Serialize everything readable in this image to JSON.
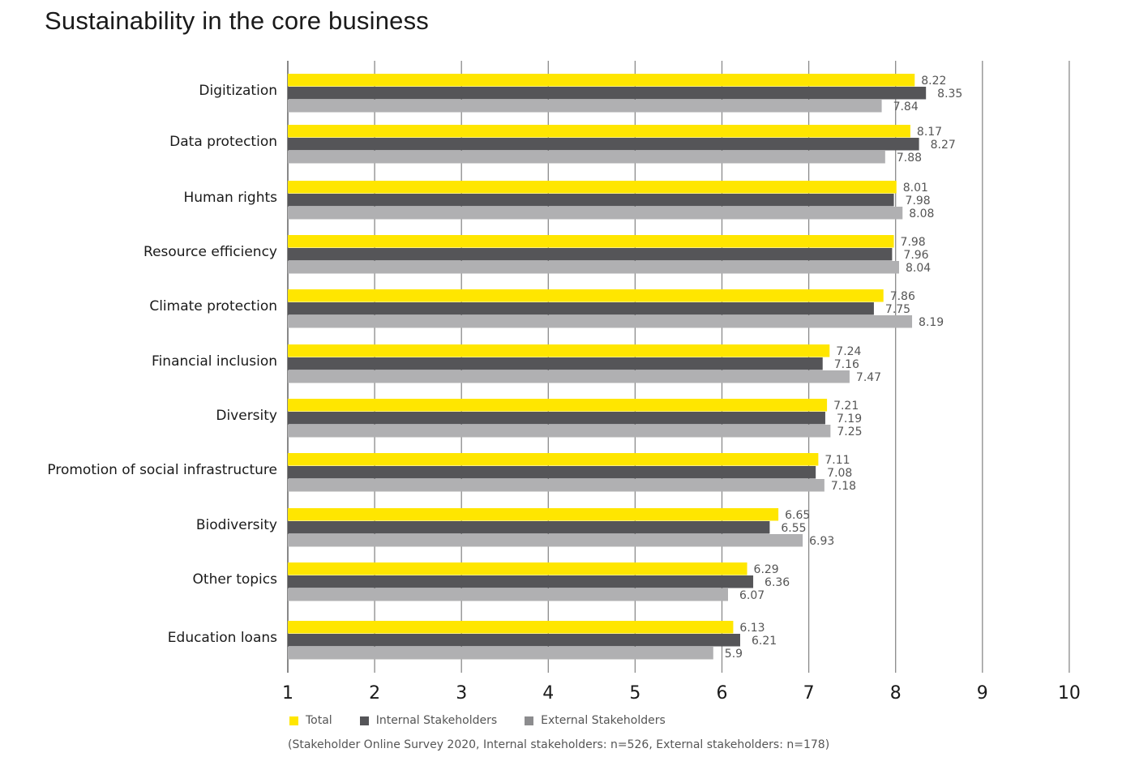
{
  "chart_data": {
    "type": "bar",
    "orientation": "horizontal",
    "title": "Sustainability in the core business",
    "xlabel": "",
    "ylabel": "",
    "xlim": [
      1,
      10
    ],
    "xticks": [
      "1",
      "2",
      "3",
      "4",
      "5",
      "6",
      "7",
      "8",
      "9",
      "10"
    ],
    "grid": true,
    "legend_position": "bottom-left",
    "categories": [
      "Digitization",
      "Data protection",
      "Human rights",
      "Resource efficiency",
      "Climate protection",
      "Financial inclusion",
      "Diversity",
      "Promotion of social infrastructure",
      "Biodiversity",
      "Other topics",
      "Education loans"
    ],
    "series": [
      {
        "name": "Total",
        "color": "#FFE600",
        "values": [
          8.22,
          8.17,
          8.01,
          7.98,
          7.86,
          7.24,
          7.21,
          7.11,
          6.65,
          6.29,
          6.13
        ],
        "labels": [
          "8.22",
          "8.17",
          "8.01",
          "7.98",
          "7.86",
          "7.24",
          "7.21",
          "7.11",
          "6.65",
          "6.29",
          "6.13"
        ]
      },
      {
        "name": "Internal Stakeholders",
        "color": "#555558",
        "values": [
          8.35,
          8.27,
          7.98,
          7.96,
          7.75,
          7.16,
          7.19,
          7.08,
          6.55,
          6.36,
          6.21
        ],
        "labels": [
          "8.35",
          "8.27",
          "7.98",
          "7.96",
          "7.75",
          "7.16",
          "7.19",
          "7.08",
          "6.55",
          "6.36",
          "6.21"
        ]
      },
      {
        "name": "External Stakeholders",
        "color": "#B0B0B2",
        "values": [
          7.84,
          7.88,
          8.08,
          8.04,
          8.19,
          7.47,
          7.25,
          7.18,
          6.93,
          6.07,
          5.9
        ],
        "labels": [
          "7.84",
          "7.88",
          "8.08",
          "8.04",
          "8.19",
          "7.47",
          "7.25",
          "7.18",
          "6.93",
          "6.07",
          "5.9"
        ]
      }
    ],
    "footnote": "(Stakeholder Online Survey 2020, Internal stakeholders: n=526, External stakeholders: n=178)"
  }
}
